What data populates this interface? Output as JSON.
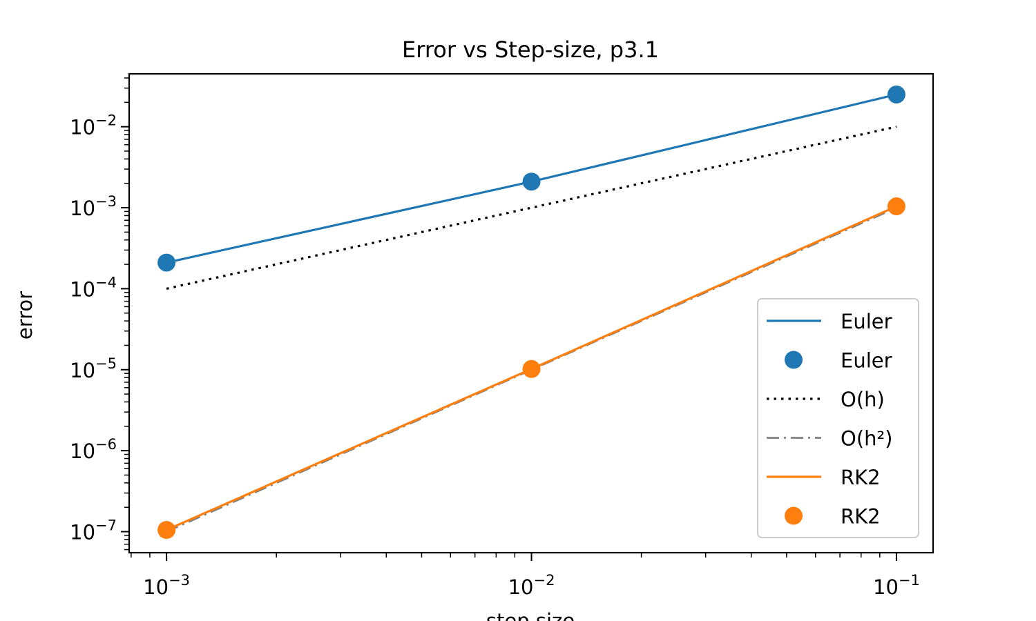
{
  "chart_data": {
    "type": "line",
    "title": "Error vs Step-size, p3.1",
    "xlabel": "step size",
    "ylabel": "error",
    "xscale": "log",
    "yscale": "log",
    "xlim": [
      0.00079,
      0.126
    ],
    "ylim": [
      5.5e-08,
      0.045
    ],
    "x_ticks": [
      {
        "value": 0.001,
        "base": "10",
        "exp": "−3"
      },
      {
        "value": 0.01,
        "base": "10",
        "exp": "−2"
      },
      {
        "value": 0.1,
        "base": "10",
        "exp": "−1"
      }
    ],
    "y_ticks": [
      {
        "value": 1e-07,
        "base": "10",
        "exp": "−7"
      },
      {
        "value": 1e-06,
        "base": "10",
        "exp": "−6"
      },
      {
        "value": 1e-05,
        "base": "10",
        "exp": "−5"
      },
      {
        "value": 0.0001,
        "base": "10",
        "exp": "−4"
      },
      {
        "value": 0.001,
        "base": "10",
        "exp": "−3"
      },
      {
        "value": 0.01,
        "base": "10",
        "exp": "−2"
      }
    ],
    "grid": false,
    "legend_position": "lower right",
    "series": [
      {
        "name": "Euler",
        "kind": "line",
        "color": "#1f77b4",
        "x": [
          0.001,
          0.01,
          0.1
        ],
        "y": [
          0.00021,
          0.0021,
          0.025
        ]
      },
      {
        "name": "Euler",
        "kind": "scatter",
        "color": "#1f77b4",
        "x": [
          0.001,
          0.01,
          0.1
        ],
        "y": [
          0.00021,
          0.0021,
          0.025
        ]
      },
      {
        "name": "O(h)",
        "kind": "dotted",
        "color": "#000000",
        "x": [
          0.001,
          0.01,
          0.1
        ],
        "y": [
          0.0001,
          0.001,
          0.01
        ]
      },
      {
        "name": "O(h²)",
        "kind": "dashdot",
        "color": "#808080",
        "x": [
          0.001,
          0.01,
          0.1
        ],
        "y": [
          1e-07,
          1e-05,
          0.001
        ]
      },
      {
        "name": "RK2",
        "kind": "line",
        "color": "#ff7f0e",
        "x": [
          0.001,
          0.01,
          0.1
        ],
        "y": [
          1.05e-07,
          1.02e-05,
          0.00104
        ]
      },
      {
        "name": "RK2",
        "kind": "scatter",
        "color": "#ff7f0e",
        "x": [
          0.001,
          0.01,
          0.1
        ],
        "y": [
          1.05e-07,
          1.02e-05,
          0.00104
        ]
      }
    ]
  }
}
